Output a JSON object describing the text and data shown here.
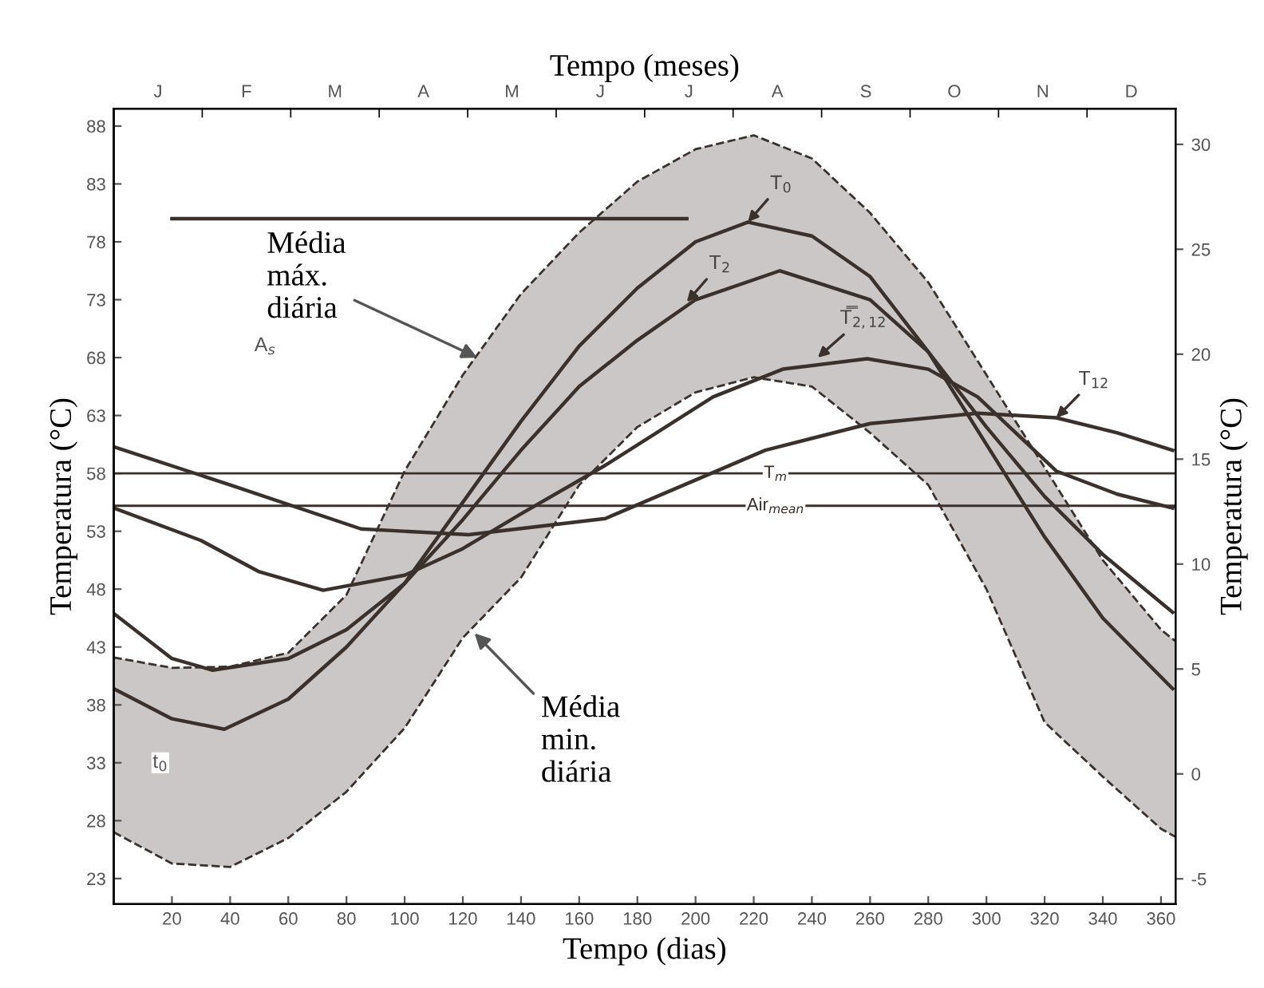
{
  "chart_data": {
    "type": "line",
    "xlabel": "Tempo (dias)",
    "ylabel": "Temperatura (°C)",
    "y2label": "Temperatura (°C)",
    "x2label": "Tempo (meses)",
    "xlim": [
      0,
      365
    ],
    "xticks": [
      20,
      40,
      60,
      80,
      100,
      120,
      140,
      160,
      180,
      200,
      220,
      240,
      260,
      280,
      300,
      320,
      340,
      360
    ],
    "ylim": [
      20.8,
      89.5
    ],
    "yticks": [
      23,
      28,
      33,
      38,
      43,
      48,
      53,
      58,
      63,
      68,
      73,
      78,
      83,
      88
    ],
    "y2lim": [
      -6.2,
      31.7
    ],
    "y2ticks": [
      -5,
      0,
      5,
      10,
      15,
      20,
      25,
      30
    ],
    "grid": false,
    "legend": false,
    "series": [
      {
        "color": "#3a302c",
        "line_style": "dashed",
        "x": [
          0,
          20,
          40,
          60,
          80,
          100,
          120,
          140,
          160,
          180,
          200,
          220,
          240,
          260,
          280,
          300,
          320,
          340,
          360,
          365
        ],
        "values": [
          42.1,
          41.2,
          41.3,
          42.5,
          47.5,
          58.2,
          66.5,
          73.5,
          78.8,
          83.2,
          86,
          87.2,
          85.2,
          80.5,
          74.5,
          66.5,
          58.5,
          50.5,
          44.5,
          43.5
        ],
        "lower": [
          27,
          24.3,
          24,
          26.5,
          30.5,
          36,
          43.8,
          49,
          57,
          62,
          65,
          66.3,
          65.5,
          61.5,
          57,
          48,
          36.5,
          31.8,
          27.3,
          26.6
        ],
        "upper": [
          42.1,
          41.2,
          41.3,
          42.5,
          47.5,
          58.2,
          66.5,
          73.5,
          78.8,
          83.2,
          86,
          87.2,
          85.2,
          80.5,
          74.5,
          66.5,
          58.5,
          50.5,
          44.5,
          43.5
        ]
      },
      {
        "color": "#3a302c",
        "line_style": "dashed",
        "x": [
          0,
          20,
          40,
          60,
          80,
          100,
          120,
          140,
          160,
          180,
          200,
          220,
          240,
          260,
          280,
          300,
          320,
          340,
          360,
          365
        ],
        "values": [
          27,
          24.3,
          24,
          26.5,
          30.5,
          36,
          43.8,
          49,
          57,
          62,
          65,
          66.3,
          65.5,
          61.5,
          57,
          48,
          36.5,
          31.8,
          27.3,
          26.6
        ]
      },
      {
        "color": "#3a302c",
        "x": [
          0,
          20,
          38,
          60,
          80,
          100,
          120,
          140,
          160,
          180,
          200,
          218,
          240,
          260,
          280,
          300,
          320,
          340,
          364
        ],
        "values": [
          39.4,
          36.8,
          35.9,
          38.5,
          43,
          48.5,
          55.5,
          62.5,
          69,
          74,
          78,
          79.7,
          78.5,
          75,
          68.5,
          60.5,
          52.5,
          45.5,
          39.4
        ]
      },
      {
        "color": "#3a302c",
        "x": [
          0,
          20,
          34,
          60,
          80,
          100,
          120,
          140,
          160,
          180,
          200,
          229,
          260,
          280,
          300,
          320,
          340,
          364
        ],
        "values": [
          45.9,
          42,
          41,
          42,
          44.5,
          48.5,
          54,
          60,
          65.5,
          69.5,
          73,
          75.5,
          73,
          68.5,
          62,
          56,
          51,
          46
        ]
      },
      {
        "color": "#3a302c",
        "x": [
          0,
          30,
          50,
          72,
          100,
          120,
          140,
          169,
          206,
          230,
          259,
          280,
          297,
          324,
          345,
          364
        ],
        "values": [
          55,
          52.2,
          49.5,
          47.9,
          49.2,
          51.5,
          54.5,
          58.7,
          64.6,
          67,
          67.9,
          67,
          64.6,
          58.2,
          56.2,
          55
        ]
      },
      {
        "color": "#3a302c",
        "x": [
          0,
          40,
          85,
          122,
          169,
          224,
          260,
          297,
          324,
          345,
          364
        ],
        "values": [
          60.3,
          57,
          53.2,
          52.7,
          54.1,
          60,
          62.3,
          63.2,
          62.8,
          61.5,
          60
        ]
      },
      {
        "color": "#3a302c",
        "x": [
          20,
          197
        ],
        "values": [
          80,
          80
        ]
      }
    ],
    "ref_lines": [
      {
        "axis": "y",
        "value": 58,
        "label": "T$_{m}$",
        "color": "#3a302c"
      },
      {
        "axis": "y",
        "value": 55.2,
        "label": "Air$_{mean}$",
        "color": "#3a302c"
      }
    ],
    "annotations": [
      {
        "text": "Média\nmáx.\ndiária",
        "x": 125,
        "y": 68
      },
      {
        "text": "Média\nmin.\ndiária",
        "x": 124,
        "y": 44.2
      },
      {
        "text": "T$_{0}$",
        "x": 218,
        "y": 79.7
      },
      {
        "text": "T$_{2}$",
        "x": 197,
        "y": 72.8
      },
      {
        "text": "T̿$_{2,12}$",
        "x": 242,
        "y": 68
      },
      {
        "text": "T$_{12}$",
        "x": 324,
        "y": 62.8
      },
      {
        "text": "A$_{s}$",
        "x": 52,
        "y": 69
      },
      {
        "text": "t$_{0}$",
        "x": 16,
        "y": 33
      },
      "J",
      "F",
      "M",
      "A",
      "M",
      "J",
      "J",
      "A",
      "S",
      "O",
      "N",
      "D"
    ]
  }
}
